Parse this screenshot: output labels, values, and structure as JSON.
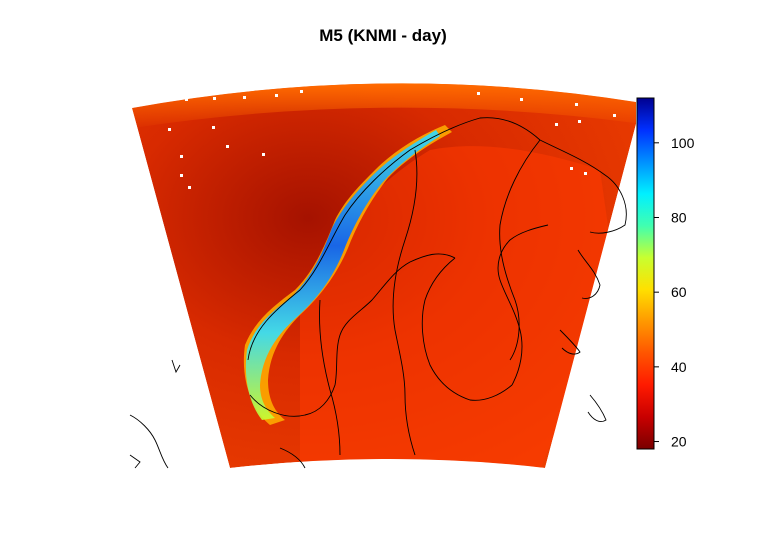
{
  "title": "M5 (KNMI - day)",
  "colorbar": {
    "ticks": [
      {
        "value": 20,
        "label": "20"
      },
      {
        "value": 40,
        "label": "40"
      },
      {
        "value": 60,
        "label": "60"
      },
      {
        "value": 80,
        "label": "80"
      },
      {
        "value": 100,
        "label": "100"
      }
    ],
    "min": 18,
    "max": 112,
    "colors": [
      "#7a0000",
      "#c80000",
      "#ff1a00",
      "#ff5500",
      "#ff9900",
      "#ffe000",
      "#c8ff30",
      "#40ffb0",
      "#00f0ff",
      "#0090ff",
      "#0030ff",
      "#000090"
    ]
  },
  "colors": {
    "background": "#ffffff",
    "field_dark": "#b51a00",
    "field_mid": "#e83600",
    "field_edge": "#ff9a00",
    "coast_line": "#000000"
  }
}
